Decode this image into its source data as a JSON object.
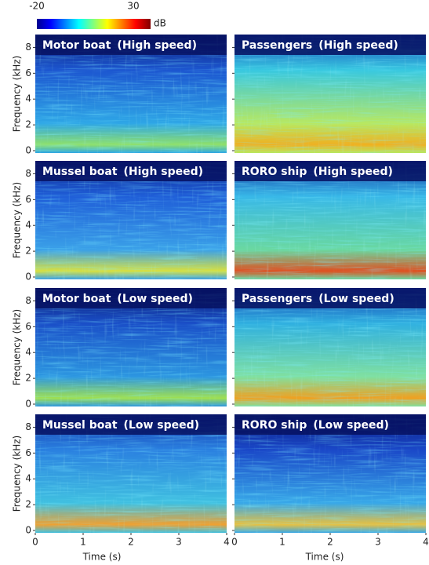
{
  "chart_data": {
    "type": "spectrogram",
    "colorbar": {
      "min": -20,
      "max": 30,
      "label": "dB",
      "colormap": "jet"
    },
    "x_label": "Time (s)",
    "y_label": "Frequency (kHz)",
    "xlim": [
      0,
      4
    ],
    "xticks": [
      0,
      1,
      2,
      3,
      4
    ],
    "ylim": [
      0,
      9
    ],
    "yticks": [
      0,
      2,
      4,
      6,
      8
    ],
    "panels": [
      {
        "title": "Motor boat",
        "subtitle": "(High speed)"
      },
      {
        "title": "Passengers",
        "subtitle": "(High speed)"
      },
      {
        "title": "Mussel boat",
        "subtitle": "(High speed)"
      },
      {
        "title": "RORO ship",
        "subtitle": "(High speed)"
      },
      {
        "title": "Motor boat",
        "subtitle": "(Low speed)"
      },
      {
        "title": "Passengers",
        "subtitle": "(Low speed)"
      },
      {
        "title": "Mussel boat",
        "subtitle": "(Low speed)"
      },
      {
        "title": "RORO ship",
        "subtitle": "(Low speed)"
      }
    ]
  }
}
